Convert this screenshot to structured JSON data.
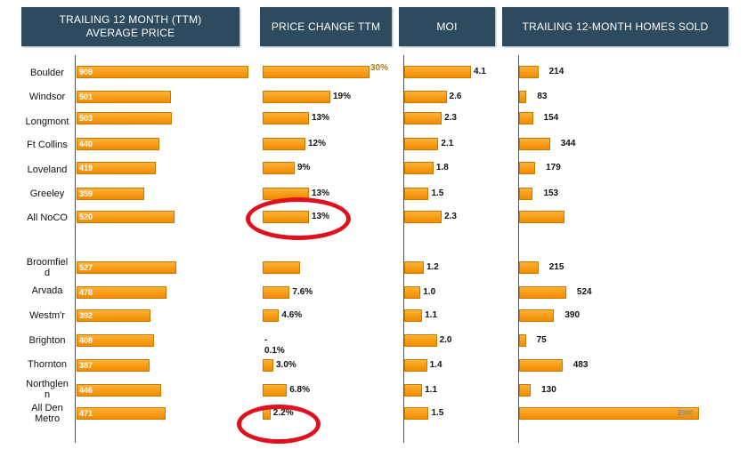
{
  "chart_data": [
    {
      "type": "bar",
      "title": "TRAILING 12 MONTH (TTM)\nAVERAGE PRICE",
      "categories": [
        "Boulder",
        "Windsor",
        "Longmont",
        "Ft Collins",
        "Loveland",
        "Greeley",
        "All NoCO",
        "Broomfield",
        "Arvada",
        "Westm'r",
        "Brighton",
        "Thornton",
        "Northglenn",
        "All Den Metro"
      ],
      "values": [
        909,
        501,
        503,
        440,
        419,
        359,
        520,
        527,
        478,
        392,
        408,
        387,
        446,
        471
      ],
      "labels": [
        "909",
        "501",
        "503",
        "440",
        "419",
        "359",
        "520",
        "527",
        "478",
        "392",
        "408",
        "387",
        "446",
        "471"
      ],
      "xlim": [
        0,
        909
      ]
    },
    {
      "type": "bar",
      "title": "PRICE CHANGE TTM",
      "categories": [
        "Boulder",
        "Windsor",
        "Longmont",
        "Ft Collins",
        "Loveland",
        "Greeley",
        "All NoCO",
        "Broomfield",
        "Arvada",
        "Westm'r",
        "Brighton",
        "Thornton",
        "Northglenn",
        "All Den Metro"
      ],
      "values": [
        30,
        19,
        13,
        12,
        9,
        13,
        13,
        null,
        7.6,
        4.6,
        -0.1,
        3.0,
        6.8,
        2.2
      ],
      "labels": [
        "30%",
        "19%",
        "13%",
        "12%",
        "9%",
        "13%",
        "13%",
        "",
        "7.6%",
        "4.6%",
        "-\n0.1%",
        "3.0%",
        "6.8%",
        "2.2%"
      ],
      "xlim": [
        0,
        30
      ]
    },
    {
      "type": "bar",
      "title": "MOI",
      "categories": [
        "Boulder",
        "Windsor",
        "Longmont",
        "Ft Collins",
        "Loveland",
        "Greeley",
        "All NoCO",
        "Broomfield",
        "Arvada",
        "Westm'r",
        "Brighton",
        "Thornton",
        "Northglenn",
        "All Den Metro"
      ],
      "values": [
        4.1,
        2.6,
        2.3,
        2.1,
        1.8,
        1.5,
        2.3,
        1.2,
        1.0,
        1.1,
        2.0,
        1.4,
        1.1,
        1.5
      ],
      "labels": [
        "4.1",
        "2.6",
        "2.3",
        "2.1",
        "1.8",
        "1.5",
        "2.3",
        "1.2",
        "1.0",
        "1.1",
        "2.0",
        "1.4",
        "1.1",
        "1.5"
      ],
      "xlim": [
        0,
        4.1
      ]
    },
    {
      "type": "bar",
      "title": "TRAILING 12-MONTH HOMES SOLD",
      "categories": [
        "Boulder",
        "Windsor",
        "Longmont",
        "Ft Collins",
        "Loveland",
        "Greeley",
        "All NoCO",
        "Broomfield",
        "Arvada",
        "Westm'r",
        "Brighton",
        "Thornton",
        "Northglenn",
        "All Den Metro"
      ],
      "values": [
        214,
        83,
        154,
        344,
        179,
        153,
        null,
        215,
        524,
        390,
        75,
        483,
        130,
        2000
      ],
      "labels": [
        "214",
        "83",
        "154",
        "344",
        "179",
        "153",
        "",
        "215",
        "524",
        "390",
        "75",
        "483",
        "130",
        "2000"
      ],
      "xlim": [
        0,
        2000
      ]
    }
  ],
  "row_labels": [
    "Boulder",
    "Windsor",
    "Longmont",
    "Ft Collins",
    "Loveland",
    "Greeley",
    "All NoCO",
    "Broomfiel\nd",
    "Arvada",
    "Westm'r",
    "Brighton",
    "Thornton",
    "Northglen\nn",
    "All Den\nMetro"
  ],
  "colors": {
    "header": "#2e4a5e",
    "bar": "#f79a12",
    "annotation": "#e0101e"
  }
}
